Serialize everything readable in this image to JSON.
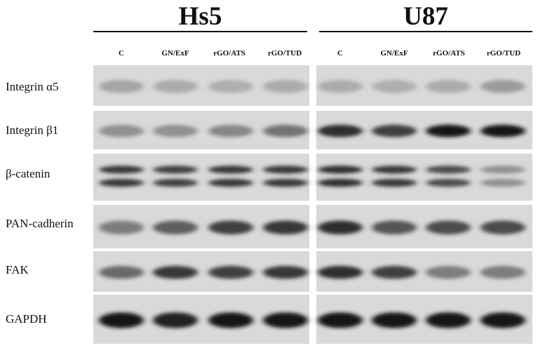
{
  "groups": [
    {
      "name": "Hs5"
    },
    {
      "name": "U87"
    }
  ],
  "lanes": [
    "C",
    "GN/ExF",
    "rGO/ATS",
    "rGO/TUD",
    "C",
    "GN/ExF",
    "rGO/ATS",
    "rGO/TUD"
  ],
  "proteins": [
    {
      "name": "Integrin α5",
      "band_intensity": [
        0.25,
        0.22,
        0.2,
        0.22,
        0.22,
        0.2,
        0.22,
        0.3
      ],
      "bands": 1
    },
    {
      "name": "Integrin β1",
      "band_intensity": [
        0.35,
        0.35,
        0.4,
        0.5,
        0.85,
        0.75,
        0.95,
        0.95
      ],
      "bands": 1
    },
    {
      "name": "β-catenin",
      "band_intensity": [
        0.8,
        0.75,
        0.8,
        0.8,
        0.85,
        0.8,
        0.7,
        0.35
      ],
      "bands": 2
    },
    {
      "name": "PAN-cadherin",
      "band_intensity": [
        0.45,
        0.6,
        0.75,
        0.8,
        0.85,
        0.65,
        0.7,
        0.7
      ],
      "bands": 1
    },
    {
      "name": "FAK",
      "band_intensity": [
        0.55,
        0.8,
        0.75,
        0.8,
        0.85,
        0.75,
        0.45,
        0.45
      ],
      "bands": 1
    },
    {
      "name": "GAPDH",
      "band_intensity": [
        0.95,
        0.9,
        0.95,
        0.95,
        0.95,
        0.95,
        0.95,
        0.95
      ],
      "bands": 1
    }
  ]
}
